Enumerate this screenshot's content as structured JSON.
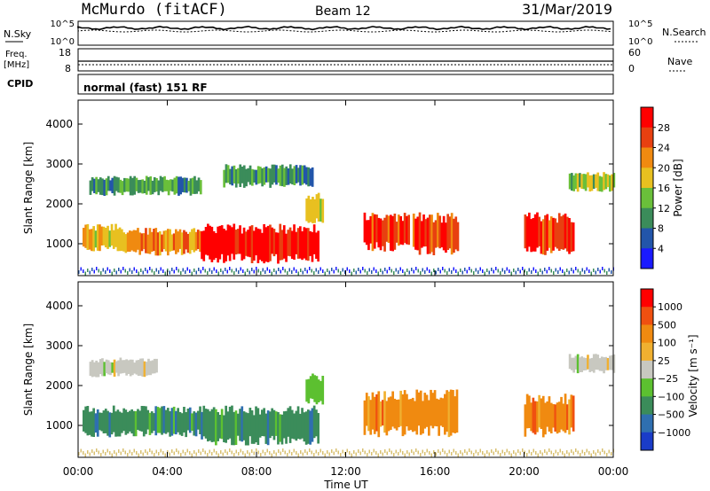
{
  "header": {
    "station": "McMurdo (fitACF)",
    "beam": "Beam 12",
    "date": "31/Mar/2019"
  },
  "status_panels": {
    "nsky_label": "N.Sky",
    "nsearch_label": "N.Search",
    "noise_ticks_left": [
      "10^5",
      "10^0"
    ],
    "noise_ticks_right": [
      "10^5",
      "10^0"
    ],
    "freq_label_1": "Freq.",
    "freq_label_2": "[MHz]",
    "freq_ticks": [
      "18",
      "8"
    ],
    "nave_label": "Nave",
    "nave_ticks": [
      "60",
      "0"
    ],
    "cpid_label": "CPID",
    "cpid_text": "normal (fast) 151 RF"
  },
  "chart_data": [
    {
      "type": "heatmap",
      "name": "power",
      "ylabel": "Slant Range [km]",
      "yticks": [
        "1000",
        "2000",
        "3000",
        "4000"
      ],
      "ylim": [
        200,
        4600
      ],
      "xlim_hours": [
        0,
        24
      ],
      "colorbar": {
        "title": "Power [dB]",
        "ticks": [
          "4",
          "8",
          "12",
          "16",
          "20",
          "24",
          "28"
        ],
        "colors": [
          "#1a1aff",
          "#2255aa",
          "#3b8c5a",
          "#6abf3a",
          "#e8c020",
          "#f08a10",
          "#e84010",
          "#ff0000"
        ]
      },
      "regions": [
        {
          "t0": 0.2,
          "t1": 2.0,
          "r0": 800,
          "r1": 1500,
          "level": 4
        },
        {
          "t0": 2.0,
          "t1": 5.5,
          "r0": 700,
          "r1": 1400,
          "level": 5
        },
        {
          "t0": 5.5,
          "t1": 10.8,
          "r0": 500,
          "r1": 1500,
          "level": 7
        },
        {
          "t0": 10.2,
          "t1": 11.0,
          "r0": 1500,
          "r1": 2300,
          "level": 4
        },
        {
          "t0": 0.5,
          "t1": 5.5,
          "r0": 2200,
          "r1": 2700,
          "level": 2
        },
        {
          "t0": 6.5,
          "t1": 10.5,
          "r0": 2400,
          "r1": 3000,
          "level": 2
        },
        {
          "t0": 12.8,
          "t1": 14.8,
          "r0": 800,
          "r1": 1800,
          "level": 6
        },
        {
          "t0": 15.0,
          "t1": 17.0,
          "r0": 700,
          "r1": 1800,
          "level": 6
        },
        {
          "t0": 20.0,
          "t1": 22.2,
          "r0": 700,
          "r1": 1800,
          "level": 6
        },
        {
          "t0": 22.0,
          "t1": 24.0,
          "r0": 2300,
          "r1": 2800,
          "level": 3
        }
      ]
    },
    {
      "type": "heatmap",
      "name": "velocity",
      "ylabel": "Slant Range [km]",
      "yticks": [
        "1000",
        "2000",
        "3000",
        "4000"
      ],
      "ylim": [
        200,
        4600
      ],
      "xlim_hours": [
        0,
        24
      ],
      "xticks": [
        "00:00",
        "04:00",
        "08:00",
        "12:00",
        "16:00",
        "20:00",
        "00:00"
      ],
      "xlabel": "Time UT",
      "colorbar": {
        "title": "Velocity [m s⁻¹]",
        "ticks": [
          "1000",
          "500",
          "100",
          "25",
          "−25",
          "−100",
          "−500",
          "−1000"
        ],
        "colors": [
          "#1a3cc8",
          "#2f6fb0",
          "#3b8c5a",
          "#5cc030",
          "#c8c8c0",
          "#f0b030",
          "#f08a10",
          "#f05010",
          "#ff0000"
        ]
      },
      "regions": [
        {
          "t0": 0.2,
          "t1": 5.5,
          "r0": 700,
          "r1": 1500,
          "color_index": 2
        },
        {
          "t0": 5.5,
          "t1": 10.8,
          "r0": 500,
          "r1": 1500,
          "color_index": 2
        },
        {
          "t0": 10.2,
          "t1": 11.0,
          "r0": 1500,
          "r1": 2300,
          "color_index": 3
        },
        {
          "t0": 0.5,
          "t1": 3.5,
          "r0": 2200,
          "r1": 2700,
          "color_index": 4
        },
        {
          "t0": 12.8,
          "t1": 17.0,
          "r0": 700,
          "r1": 1900,
          "color_index": 6
        },
        {
          "t0": 20.0,
          "t1": 22.2,
          "r0": 700,
          "r1": 1800,
          "color_index": 6
        },
        {
          "t0": 22.0,
          "t1": 24.0,
          "r0": 2300,
          "r1": 2800,
          "color_index": 4
        }
      ]
    }
  ]
}
